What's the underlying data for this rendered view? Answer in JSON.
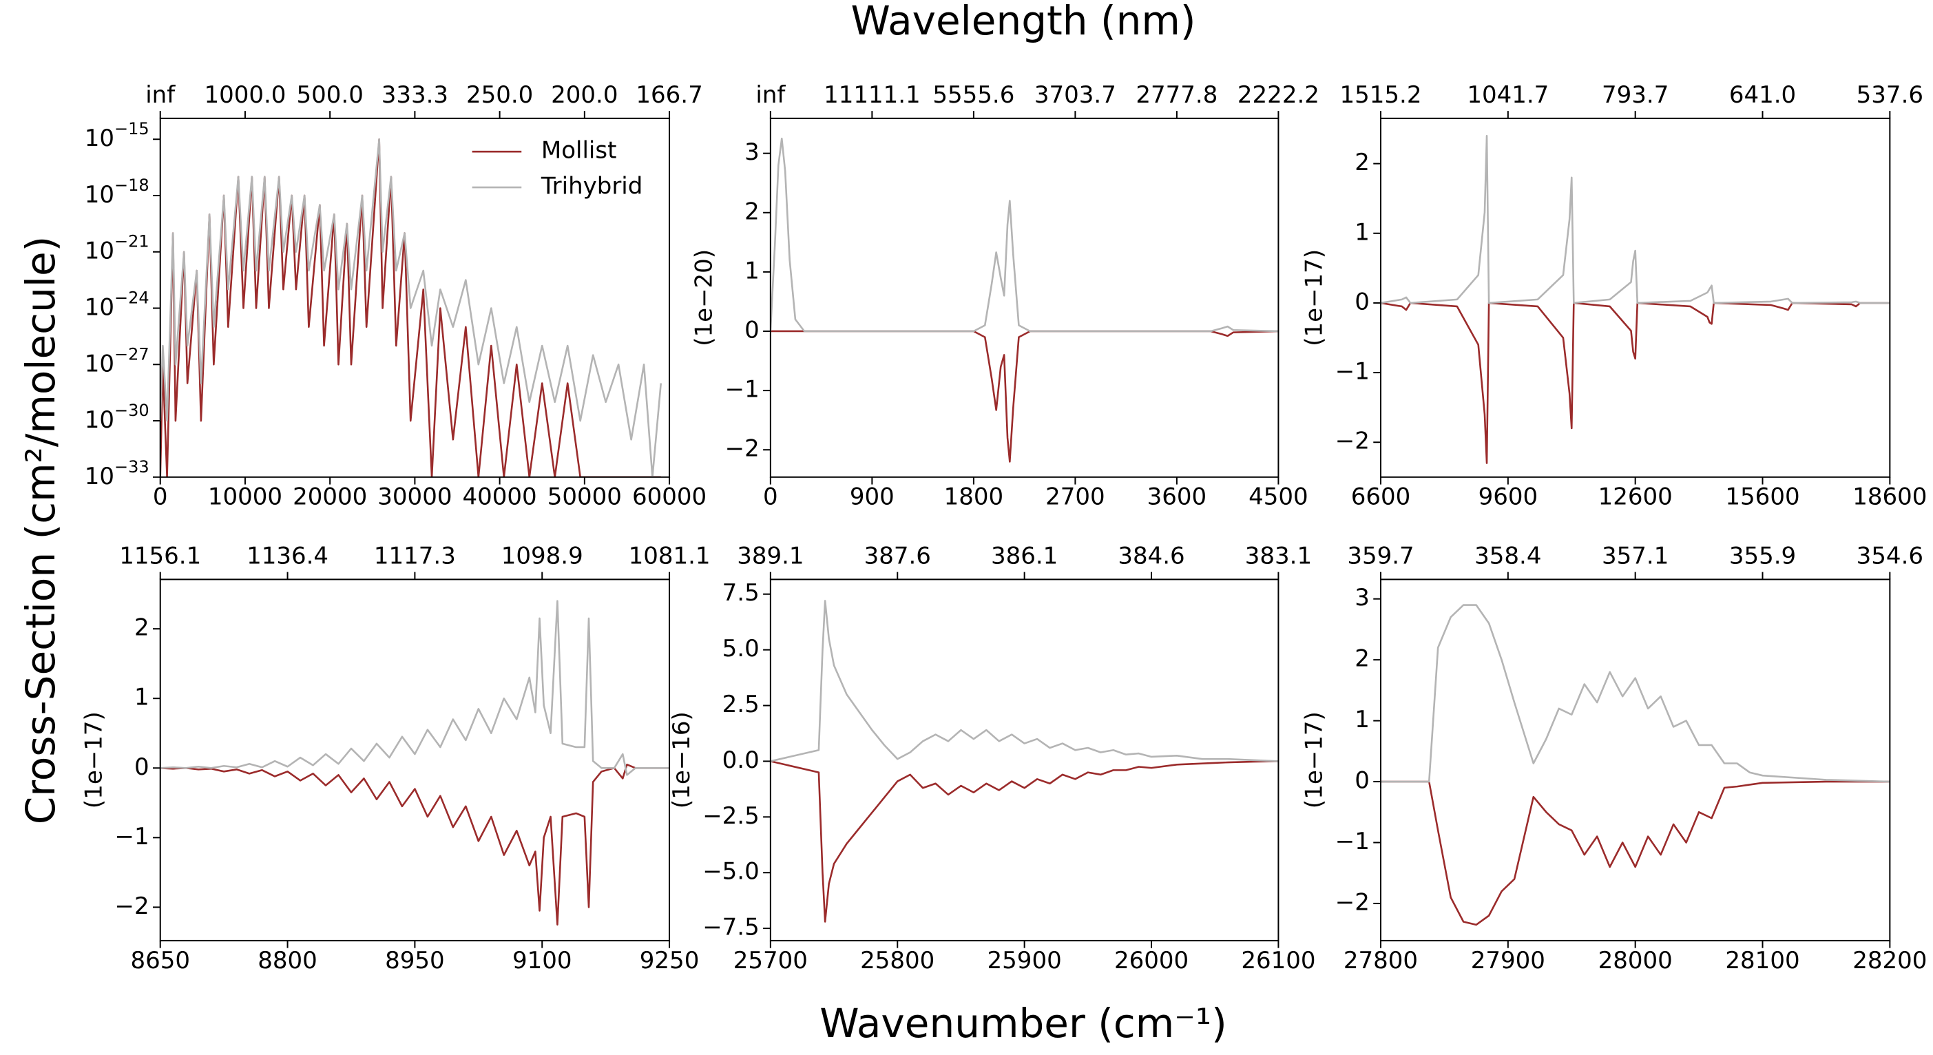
{
  "figure": {
    "title": "Wavelength (nm)",
    "xlabel": "Wavenumber (cm⁻¹)",
    "ylabel": "Cross-Section (cm²/molecule)"
  },
  "chart_data": [
    {
      "type": "line",
      "ylog": true,
      "legend": "upper right",
      "x": [
        0,
        300,
        800,
        1500,
        1800,
        2800,
        3200,
        4300,
        4800,
        5800,
        6300,
        7500,
        8000,
        9200,
        9800,
        10800,
        11300,
        12300,
        12800,
        14000,
        14500,
        15500,
        16000,
        17000,
        17500,
        18800,
        19300,
        20500,
        21000,
        22000,
        22500,
        23800,
        24300,
        25800,
        26200,
        27200,
        27800,
        28800,
        29500,
        31000,
        32000,
        33000,
        34500,
        36000,
        37500,
        39000,
        40500,
        42000,
        43500,
        45000,
        46500,
        48000,
        49500,
        51000,
        52500,
        54000,
        55500,
        57000,
        58000,
        59000
      ],
      "series": [
        {
          "name": "Mollist",
          "color": "#9b2b2b",
          "values": [
            1e-33,
            1e-27,
            1e-33,
            1e-20,
            1e-30,
            1e-21,
            1e-28,
            1e-22,
            1e-30,
            1e-19,
            1e-27,
            1e-18,
            1e-25,
            1e-17,
            1e-24,
            1e-17,
            1e-24,
            1e-17,
            1e-24,
            1e-17,
            1e-23,
            1e-18,
            1e-23,
            1e-18,
            1e-25,
            3.16e-19,
            1e-26,
            1e-19,
            1e-27,
            3.16e-20,
            1e-27,
            1e-18,
            1e-25,
            1e-15,
            1e-24,
            1e-17,
            1e-26,
            1e-20,
            1e-30,
            1e-23,
            1e-33,
            1e-24,
            1e-31,
            1e-25,
            1e-33,
            1e-26,
            1e-33,
            1e-27,
            1e-33,
            1e-28,
            1e-33,
            1e-28,
            1e-33,
            1e-33,
            1e-33,
            1e-33,
            1e-33,
            1e-33,
            1e-33,
            1e-33
          ]
        },
        {
          "name": "Trihybrid",
          "color": "#b4b4b4",
          "values": [
            1e-30,
            1e-26,
            1e-30,
            1e-20,
            1e-27,
            1e-21,
            1e-26,
            1e-22,
            1e-28,
            1e-19,
            1e-25,
            1e-18,
            1e-23,
            1e-17,
            1e-22,
            1e-17,
            1e-22,
            1e-17,
            1e-22,
            1e-17,
            1e-21,
            1e-18,
            1e-21,
            1e-18,
            1e-22,
            3.16e-19,
            1e-22,
            1e-19,
            1e-23,
            3.16e-20,
            1e-23,
            1e-18,
            1e-22,
            1e-15,
            1e-21,
            1e-17,
            1e-22,
            1e-20,
            1e-24,
            1e-22,
            1e-26,
            1e-23,
            1e-25,
            3.16e-23,
            1e-27,
            1e-24,
            1e-28,
            1e-25,
            1e-29,
            1e-26,
            1e-29,
            1e-26,
            1e-30,
            3.16e-27,
            1e-29,
            1e-27,
            1e-31,
            1e-27,
            1e-33,
            1e-28
          ]
        }
      ],
      "xlim": [
        0,
        60000
      ],
      "xticks": [
        0,
        10000,
        20000,
        30000,
        40000,
        50000,
        60000
      ],
      "x2ticks": [
        {
          "value": 0,
          "label": "inf"
        },
        {
          "value": 10000,
          "label": "1000.0"
        },
        {
          "value": 20000,
          "label": "500.0"
        },
        {
          "value": 30000,
          "label": "333.3"
        },
        {
          "value": 40000,
          "label": "250.0"
        },
        {
          "value": 50000,
          "label": "200.0"
        },
        {
          "value": 60000,
          "label": "166.7"
        }
      ],
      "ylim": [
        1e-33,
        1.3e-14
      ],
      "yticks": [
        {
          "value": 1e-33,
          "label": "10−33"
        },
        {
          "value": 1e-30,
          "label": "10−30"
        },
        {
          "value": 1e-27,
          "label": "10−27"
        },
        {
          "value": 1e-24,
          "label": "10−24"
        },
        {
          "value": 1e-21,
          "label": "10−21"
        },
        {
          "value": 1e-18,
          "label": "10−18"
        },
        {
          "value": 1e-15,
          "label": "10−15"
        }
      ]
    },
    {
      "type": "line",
      "y_offset_label": "(1e−20)",
      "x": [
        0,
        40,
        70,
        100,
        130,
        170,
        220,
        300,
        1800,
        1900,
        1960,
        2000,
        2040,
        2070,
        2100,
        2120,
        2150,
        2200,
        2300,
        3900,
        4000,
        4050,
        4100,
        4500
      ],
      "series": [
        {
          "name": "Mollist",
          "color": "#9b2b2b",
          "values": [
            0,
            0,
            0,
            0,
            0,
            0,
            0,
            0,
            0,
            -0.1,
            -0.8,
            -1.33,
            -0.6,
            -0.4,
            -1.8,
            -2.2,
            -1.3,
            -0.1,
            0,
            0,
            -0.05,
            -0.08,
            -0.02,
            0
          ]
        },
        {
          "name": "Trihybrid",
          "color": "#b4b4b4",
          "values": [
            0,
            1.5,
            2.8,
            3.25,
            2.7,
            1.2,
            0.2,
            0,
            0,
            0.1,
            0.8,
            1.33,
            0.9,
            0.6,
            1.8,
            2.2,
            1.3,
            0.1,
            0,
            0,
            0.05,
            0.08,
            0.02,
            0
          ]
        }
      ],
      "xlim": [
        0,
        4500
      ],
      "xticks": [
        0,
        900,
        1800,
        2700,
        3600,
        4500
      ],
      "x2ticks": [
        {
          "value": 0,
          "label": "inf"
        },
        {
          "value": 900,
          "label": "11111.1"
        },
        {
          "value": 1800,
          "label": "5555.6"
        },
        {
          "value": 2700,
          "label": "3703.7"
        },
        {
          "value": 3600,
          "label": "2777.8"
        },
        {
          "value": 4500,
          "label": "2222.2"
        }
      ],
      "ylim": [
        -2.46,
        3.59
      ],
      "yticks": [
        {
          "value": -2,
          "label": "−2"
        },
        {
          "value": -1,
          "label": "−1"
        },
        0,
        1,
        2,
        3
      ]
    },
    {
      "type": "line",
      "y_offset_label": "(1e−17)",
      "x": [
        6600,
        7100,
        7200,
        7300,
        8400,
        8900,
        9050,
        9100,
        9150,
        10300,
        10900,
        11050,
        11100,
        11150,
        12000,
        12500,
        12550,
        12600,
        12650,
        13900,
        14300,
        14350,
        14400,
        14450,
        15800,
        16100,
        16200,
        16300,
        17700,
        17800,
        17900,
        18600
      ],
      "series": [
        {
          "name": "Mollist",
          "color": "#9b2b2b",
          "values": [
            0,
            -0.05,
            -0.1,
            0,
            -0.05,
            -0.6,
            -1.6,
            -2.3,
            0,
            -0.05,
            -0.5,
            -1.3,
            -1.8,
            0,
            -0.05,
            -0.4,
            -0.7,
            -0.8,
            0,
            -0.05,
            -0.2,
            -0.28,
            -0.3,
            0,
            -0.03,
            -0.08,
            -0.1,
            0,
            -0.02,
            -0.05,
            0,
            0
          ]
        },
        {
          "name": "Trihybrid",
          "color": "#b4b4b4",
          "values": [
            0,
            0.05,
            0.08,
            0,
            0.05,
            0.4,
            1.3,
            2.4,
            0,
            0.05,
            0.4,
            1.2,
            1.8,
            0,
            0.05,
            0.3,
            0.6,
            0.75,
            0,
            0.03,
            0.15,
            0.2,
            0.25,
            0,
            0.02,
            0.05,
            0.06,
            0,
            0.01,
            0.02,
            0,
            0
          ]
        }
      ],
      "xlim": [
        6600,
        18600
      ],
      "xticks": [
        6600,
        9600,
        12600,
        15600,
        18600
      ],
      "x2ticks": [
        {
          "value": 6600,
          "label": "1515.2"
        },
        {
          "value": 9600,
          "label": "1041.7"
        },
        {
          "value": 12600,
          "label": "793.7"
        },
        {
          "value": 15600,
          "label": "641.0"
        },
        {
          "value": 18600,
          "label": "537.6"
        }
      ],
      "ylim": [
        -2.5,
        2.65
      ],
      "yticks": [
        {
          "value": -2,
          "label": "−2"
        },
        {
          "value": -1,
          "label": "−1"
        },
        0,
        1,
        2
      ]
    },
    {
      "type": "line",
      "y_offset_label": "(1e−17)",
      "x": [
        8650,
        8665,
        8680,
        8695,
        8710,
        8725,
        8740,
        8755,
        8770,
        8785,
        8800,
        8815,
        8830,
        8845,
        8860,
        8875,
        8890,
        8905,
        8920,
        8935,
        8950,
        8965,
        8980,
        8995,
        9010,
        9025,
        9040,
        9055,
        9070,
        9085,
        9092,
        9097,
        9102,
        9110,
        9118,
        9124,
        9140,
        9150,
        9155,
        9160,
        9170,
        9185,
        9195,
        9200,
        9210,
        9250
      ],
      "series": [
        {
          "name": "Mollist",
          "color": "#9b2b2b",
          "values": [
            0,
            -0.01,
            0,
            -0.02,
            -0.01,
            -0.05,
            -0.02,
            -0.08,
            -0.03,
            -0.12,
            -0.05,
            -0.18,
            -0.08,
            -0.25,
            -0.1,
            -0.35,
            -0.15,
            -0.45,
            -0.2,
            -0.55,
            -0.3,
            -0.7,
            -0.4,
            -0.85,
            -0.55,
            -1.05,
            -0.7,
            -1.25,
            -0.9,
            -1.4,
            -1.2,
            -2.05,
            -1.0,
            -0.7,
            -2.25,
            -0.7,
            -0.65,
            -0.7,
            -2.0,
            -0.2,
            -0.05,
            0,
            -0.15,
            0.05,
            0,
            0
          ]
        },
        {
          "name": "Trihybrid",
          "color": "#b4b4b4",
          "values": [
            0,
            0.01,
            0,
            0.02,
            0,
            0.03,
            0.01,
            0.06,
            0.01,
            0.1,
            0.02,
            0.15,
            0.04,
            0.2,
            0.06,
            0.28,
            0.1,
            0.35,
            0.15,
            0.45,
            0.2,
            0.55,
            0.3,
            0.7,
            0.4,
            0.85,
            0.5,
            1.0,
            0.7,
            1.3,
            0.8,
            2.15,
            0.9,
            0.5,
            2.4,
            0.35,
            0.3,
            0.3,
            2.15,
            0.1,
            0,
            0,
            0.2,
            -0.1,
            0,
            0
          ]
        }
      ],
      "xlim": [
        8650,
        9250
      ],
      "xticks": [
        8650,
        8800,
        8950,
        9100,
        9250
      ],
      "x2ticks": [
        {
          "value": 8650,
          "label": "1156.1"
        },
        {
          "value": 8800,
          "label": "1136.4"
        },
        {
          "value": 8950,
          "label": "1117.3"
        },
        {
          "value": 9100,
          "label": "1098.9"
        },
        {
          "value": 9250,
          "label": "1081.1"
        }
      ],
      "ylim": [
        -2.48,
        2.71
      ],
      "yticks": [
        {
          "value": -2,
          "label": "−2"
        },
        {
          "value": -1,
          "label": "−1"
        },
        0,
        1,
        2
      ]
    },
    {
      "type": "line",
      "y_offset_label": "(1e−16)",
      "x": [
        25700,
        25738,
        25741,
        25743,
        25746,
        25750,
        25760,
        25770,
        25780,
        25790,
        25800,
        25810,
        25820,
        25830,
        25840,
        25850,
        25860,
        25870,
        25880,
        25890,
        25900,
        25910,
        25920,
        25930,
        25940,
        25950,
        25960,
        25970,
        25980,
        25990,
        26000,
        26020,
        26040,
        26060,
        26080,
        26100
      ],
      "series": [
        {
          "name": "Mollist",
          "color": "#9b2b2b",
          "values": [
            0,
            -0.5,
            -5,
            -7.2,
            -5.5,
            -4.6,
            -3.7,
            -3.0,
            -2.3,
            -1.6,
            -0.9,
            -0.6,
            -1.2,
            -1.0,
            -1.5,
            -1.1,
            -1.4,
            -1.0,
            -1.3,
            -0.9,
            -1.2,
            -0.8,
            -1.0,
            -0.6,
            -0.8,
            -0.5,
            -0.6,
            -0.4,
            -0.4,
            -0.25,
            -0.3,
            -0.15,
            -0.1,
            -0.05,
            -0.02,
            0
          ]
        },
        {
          "name": "Trihybrid",
          "color": "#b4b4b4",
          "values": [
            0,
            0.5,
            5,
            7.2,
            5.5,
            4.3,
            3.0,
            2.2,
            1.4,
            0.7,
            0.1,
            0.4,
            0.9,
            1.2,
            0.9,
            1.4,
            1.0,
            1.4,
            0.9,
            1.2,
            0.8,
            1.0,
            0.6,
            0.8,
            0.5,
            0.6,
            0.4,
            0.5,
            0.3,
            0.35,
            0.2,
            0.25,
            0.1,
            0.1,
            0.05,
            0
          ]
        }
      ],
      "xlim": [
        25700,
        26100
      ],
      "xticks": [
        25700,
        25800,
        25900,
        26000,
        26100
      ],
      "x2ticks": [
        {
          "value": 25700,
          "label": "389.1"
        },
        {
          "value": 25800,
          "label": "387.6"
        },
        {
          "value": 25900,
          "label": "386.1"
        },
        {
          "value": 26000,
          "label": "384.6"
        },
        {
          "value": 26100,
          "label": "383.1"
        }
      ],
      "ylim": [
        -8.05,
        8.16
      ],
      "yticks": [
        {
          "value": -7.5,
          "label": "−7.5"
        },
        {
          "value": -5,
          "label": "−5.0"
        },
        {
          "value": -2.5,
          "label": "−2.5"
        },
        {
          "value": 0,
          "label": "0.0"
        },
        2.5,
        {
          "value": 5,
          "label": "5.0"
        },
        7.5
      ]
    },
    {
      "type": "line",
      "y_offset_label": "(1e−17)",
      "x": [
        27800,
        27838,
        27845,
        27855,
        27865,
        27875,
        27885,
        27895,
        27905,
        27920,
        27930,
        27940,
        27950,
        27960,
        27970,
        27980,
        27990,
        28000,
        28010,
        28020,
        28030,
        28040,
        28050,
        28060,
        28070,
        28080,
        28090,
        28100,
        28150,
        28200
      ],
      "series": [
        {
          "name": "Mollist",
          "color": "#9b2b2b",
          "values": [
            0,
            0,
            -0.8,
            -1.9,
            -2.3,
            -2.35,
            -2.2,
            -1.8,
            -1.6,
            -0.25,
            -0.5,
            -0.7,
            -0.8,
            -1.2,
            -0.9,
            -1.4,
            -1.0,
            -1.4,
            -0.9,
            -1.2,
            -0.7,
            -1.0,
            -0.5,
            -0.6,
            -0.1,
            -0.08,
            -0.05,
            -0.02,
            0,
            0
          ]
        },
        {
          "name": "Trihybrid",
          "color": "#b4b4b4",
          "values": [
            0,
            0,
            2.2,
            2.7,
            2.9,
            2.9,
            2.6,
            2.0,
            1.3,
            0.3,
            0.7,
            1.2,
            1.1,
            1.6,
            1.3,
            1.8,
            1.4,
            1.7,
            1.2,
            1.4,
            0.9,
            1.0,
            0.6,
            0.6,
            0.3,
            0.3,
            0.15,
            0.1,
            0.03,
            0
          ]
        }
      ],
      "xlim": [
        27800,
        28200
      ],
      "xticks": [
        27800,
        27900,
        28000,
        28100,
        28200
      ],
      "x2ticks": [
        {
          "value": 27800,
          "label": "359.7"
        },
        {
          "value": 27900,
          "label": "358.4"
        },
        {
          "value": 28000,
          "label": "357.1"
        },
        {
          "value": 28100,
          "label": "355.9"
        },
        {
          "value": 28200,
          "label": "354.6"
        }
      ],
      "ylim": [
        -2.61,
        3.32
      ],
      "yticks": [
        {
          "value": -2,
          "label": "−2"
        },
        {
          "value": -1,
          "label": "−1"
        },
        0,
        1,
        2,
        3
      ]
    }
  ]
}
